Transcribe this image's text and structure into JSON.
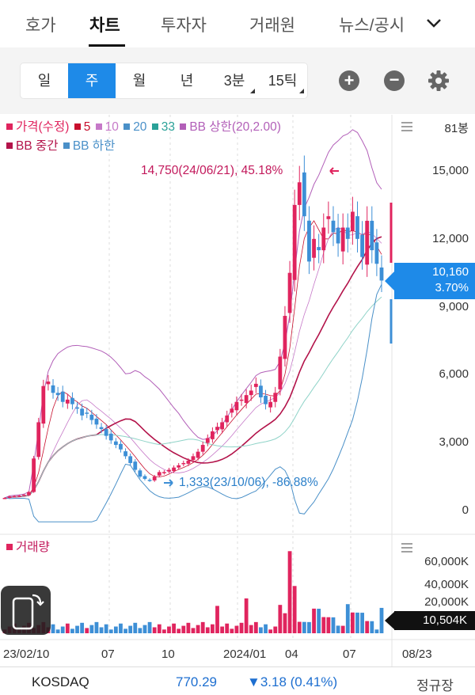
{
  "tabs": [
    {
      "label": "호가"
    },
    {
      "label": "차트"
    },
    {
      "label": "투자자"
    },
    {
      "label": "거래원"
    },
    {
      "label": "뉴스/공시"
    }
  ],
  "active_tab": "차트",
  "periods": [
    {
      "label": "일"
    },
    {
      "label": "주"
    },
    {
      "label": "월"
    },
    {
      "label": "년"
    },
    {
      "label": "3분"
    },
    {
      "label": "15틱"
    }
  ],
  "active_period": "주",
  "legend": {
    "line1": [
      {
        "label": "가격(수정)",
        "color": "#e0245e"
      },
      {
        "label": "5",
        "color": "#c8102e"
      },
      {
        "label": "10",
        "color": "#c679c8"
      },
      {
        "label": "20",
        "color": "#4a90c8"
      },
      {
        "label": "33",
        "color": "#2aa198"
      },
      {
        "label": "BB 상한(20,2.00)",
        "color": "#b25fb8"
      }
    ],
    "line2": [
      {
        "label": "BB 중간",
        "color": "#b3134a"
      },
      {
        "label": "BB 하한",
        "color": "#4a90c8"
      }
    ]
  },
  "bong_count": "81봉",
  "price_axis": [
    "15,000",
    "12,000",
    "9,000",
    "6,000",
    "3,000",
    "0"
  ],
  "annotations": {
    "high": "14,750(24/06/21), 45.18%",
    "low": "1,333(23/10/06), -86.88%"
  },
  "current": {
    "price": "10,160",
    "change": "3.70%"
  },
  "volume": {
    "label": "거래량",
    "axis": [
      "60,000K",
      "40,000K",
      "20,000K"
    ],
    "current": "10,504K"
  },
  "dates": [
    "23/02/10",
    "07",
    "10",
    "2024/01",
    "04",
    "07",
    "08/23"
  ],
  "footer": {
    "index": "KOSDAQ",
    "value": "770.29",
    "change": "▼3.18 (0.41%)",
    "status": "정규장"
  },
  "colors": {
    "up": "#e0245e",
    "down": "#3d8fd6",
    "accent": "#1e8ae8"
  },
  "chart_data": {
    "type": "candlestick",
    "y_range": [
      0,
      16500
    ],
    "high_marker": 14750,
    "low_marker": 1333,
    "last_close": 10160,
    "volume_range_k": [
      0,
      70000
    ],
    "last_volume_k": 10504
  }
}
